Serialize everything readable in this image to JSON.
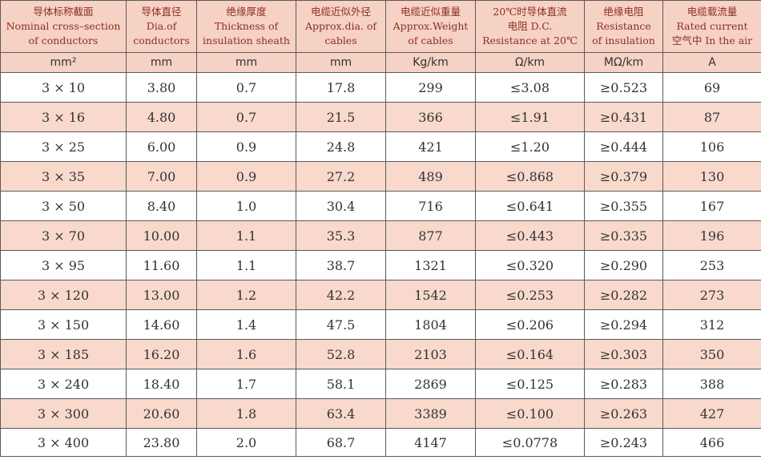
{
  "headers": [
    {
      "cn": "导体标称截面",
      "en1": "Nominal cross–section",
      "en2": "of conductors"
    },
    {
      "cn": "导体直径",
      "en1": "Dia.of",
      "en2": "conductors"
    },
    {
      "cn": "绝缘厚度",
      "en1": "Thickness of",
      "en2": "insulation sheath"
    },
    {
      "cn": "电缆近似外径",
      "en1": "Approx.dia. of",
      "en2": "cables"
    },
    {
      "cn": "电缆近似重量",
      "en1": "Approx.Weight",
      "en2": "of cables"
    },
    {
      "cn": "20℃时导体直流",
      "en1": "电阻 D.C.",
      "en2": "Resistance at 20℃"
    },
    {
      "cn": "绝缘电阻",
      "en1": "Resistance",
      "en2": "of insulation"
    },
    {
      "cn": "电缆载流量",
      "en1": "Rated current",
      "en2": "空气中 In the air"
    }
  ],
  "units": [
    "mm²",
    "mm",
    "mm",
    "mm",
    "Kg/km",
    "Ω/km",
    "MΩ/km",
    "A"
  ],
  "rows": [
    [
      "3 × 10",
      "3.80",
      "0.7",
      "17.8",
      "299",
      "≤3.08",
      "≥0.523",
      "69"
    ],
    [
      "3 × 16",
      "4.80",
      "0.7",
      "21.5",
      "366",
      "≤1.91",
      "≥0.431",
      "87"
    ],
    [
      "3 × 25",
      "6.00",
      "0.9",
      "24.8",
      "421",
      "≤1.20",
      "≥0.444",
      "106"
    ],
    [
      "3 × 35",
      "7.00",
      "0.9",
      "27.2",
      "489",
      "≤0.868",
      "≥0.379",
      "130"
    ],
    [
      "3 × 50",
      "8.40",
      "1.0",
      "30.4",
      "716",
      "≤0.641",
      "≥0.355",
      "167"
    ],
    [
      "3 × 70",
      "10.00",
      "1.1",
      "35.3",
      "877",
      "≤0.443",
      "≥0.335",
      "196"
    ],
    [
      "3 × 95",
      "11.60",
      "1.1",
      "38.7",
      "1321",
      "≤0.320",
      "≥0.290",
      "253"
    ],
    [
      "3 × 120",
      "13.00",
      "1.2",
      "42.2",
      "1542",
      "≤0.253",
      "≥0.282",
      "273"
    ],
    [
      "3 × 150",
      "14.60",
      "1.4",
      "47.5",
      "1804",
      "≤0.206",
      "≥0.294",
      "312"
    ],
    [
      "3 × 185",
      "16.20",
      "1.6",
      "52.8",
      "2103",
      "≤0.164",
      "≥0.303",
      "350"
    ],
    [
      "3 × 240",
      "18.40",
      "1.7",
      "58.1",
      "2869",
      "≤0.125",
      "≥0.283",
      "388"
    ],
    [
      "3 × 300",
      "20.60",
      "1.8",
      "63.4",
      "3389",
      "≤0.100",
      "≥0.263",
      "427"
    ],
    [
      "3 × 400",
      "23.80",
      "2.0",
      "68.7",
      "4147",
      "≤0.0778",
      "≥0.243",
      "466"
    ]
  ]
}
